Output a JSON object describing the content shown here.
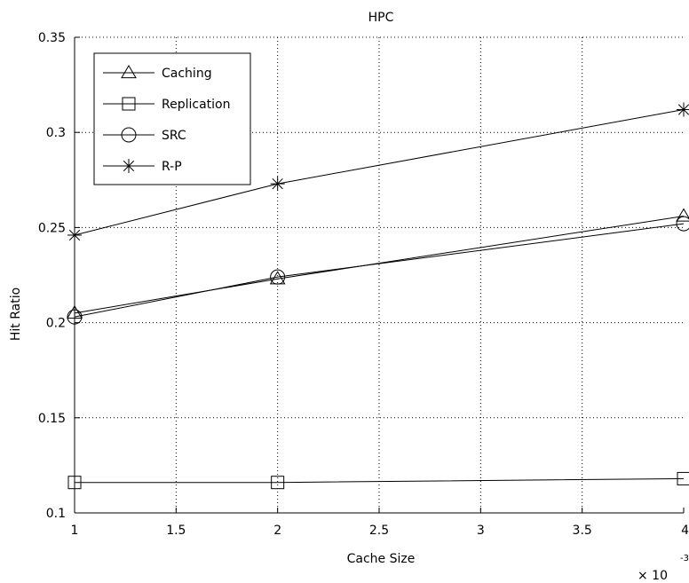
{
  "chart_data": {
    "type": "line",
    "title": "HPC",
    "xlabel": "Cache Size",
    "ylabel": "Hit Ratio",
    "x_exponent_base": "× 10",
    "x_exponent_power": "-3",
    "xlim": [
      1,
      4
    ],
    "ylim": [
      0.1,
      0.35
    ],
    "x_ticks": [
      1,
      1.5,
      2,
      2.5,
      3,
      3.5,
      4
    ],
    "x_tick_labels": [
      "1",
      "1.5",
      "2",
      "2.5",
      "3",
      "3.5",
      "4"
    ],
    "y_ticks": [
      0.1,
      0.15,
      0.2,
      0.25,
      0.3,
      0.35
    ],
    "y_tick_labels": [
      "0.1",
      "0.15",
      "0.2",
      "0.25",
      "0.3",
      "0.35"
    ],
    "grid": true,
    "legend_position": "top-left",
    "x": [
      1,
      2,
      4
    ],
    "series": [
      {
        "name": "Caching",
        "marker": "triangle",
        "values": [
          0.205,
          0.223,
          0.256
        ]
      },
      {
        "name": "Replication",
        "marker": "square",
        "values": [
          0.116,
          0.116,
          0.118
        ]
      },
      {
        "name": "SRC",
        "marker": "circle",
        "values": [
          0.203,
          0.224,
          0.252
        ]
      },
      {
        "name": "R-P",
        "marker": "star",
        "values": [
          0.246,
          0.273,
          0.312
        ]
      }
    ],
    "line_color": "#000000"
  }
}
